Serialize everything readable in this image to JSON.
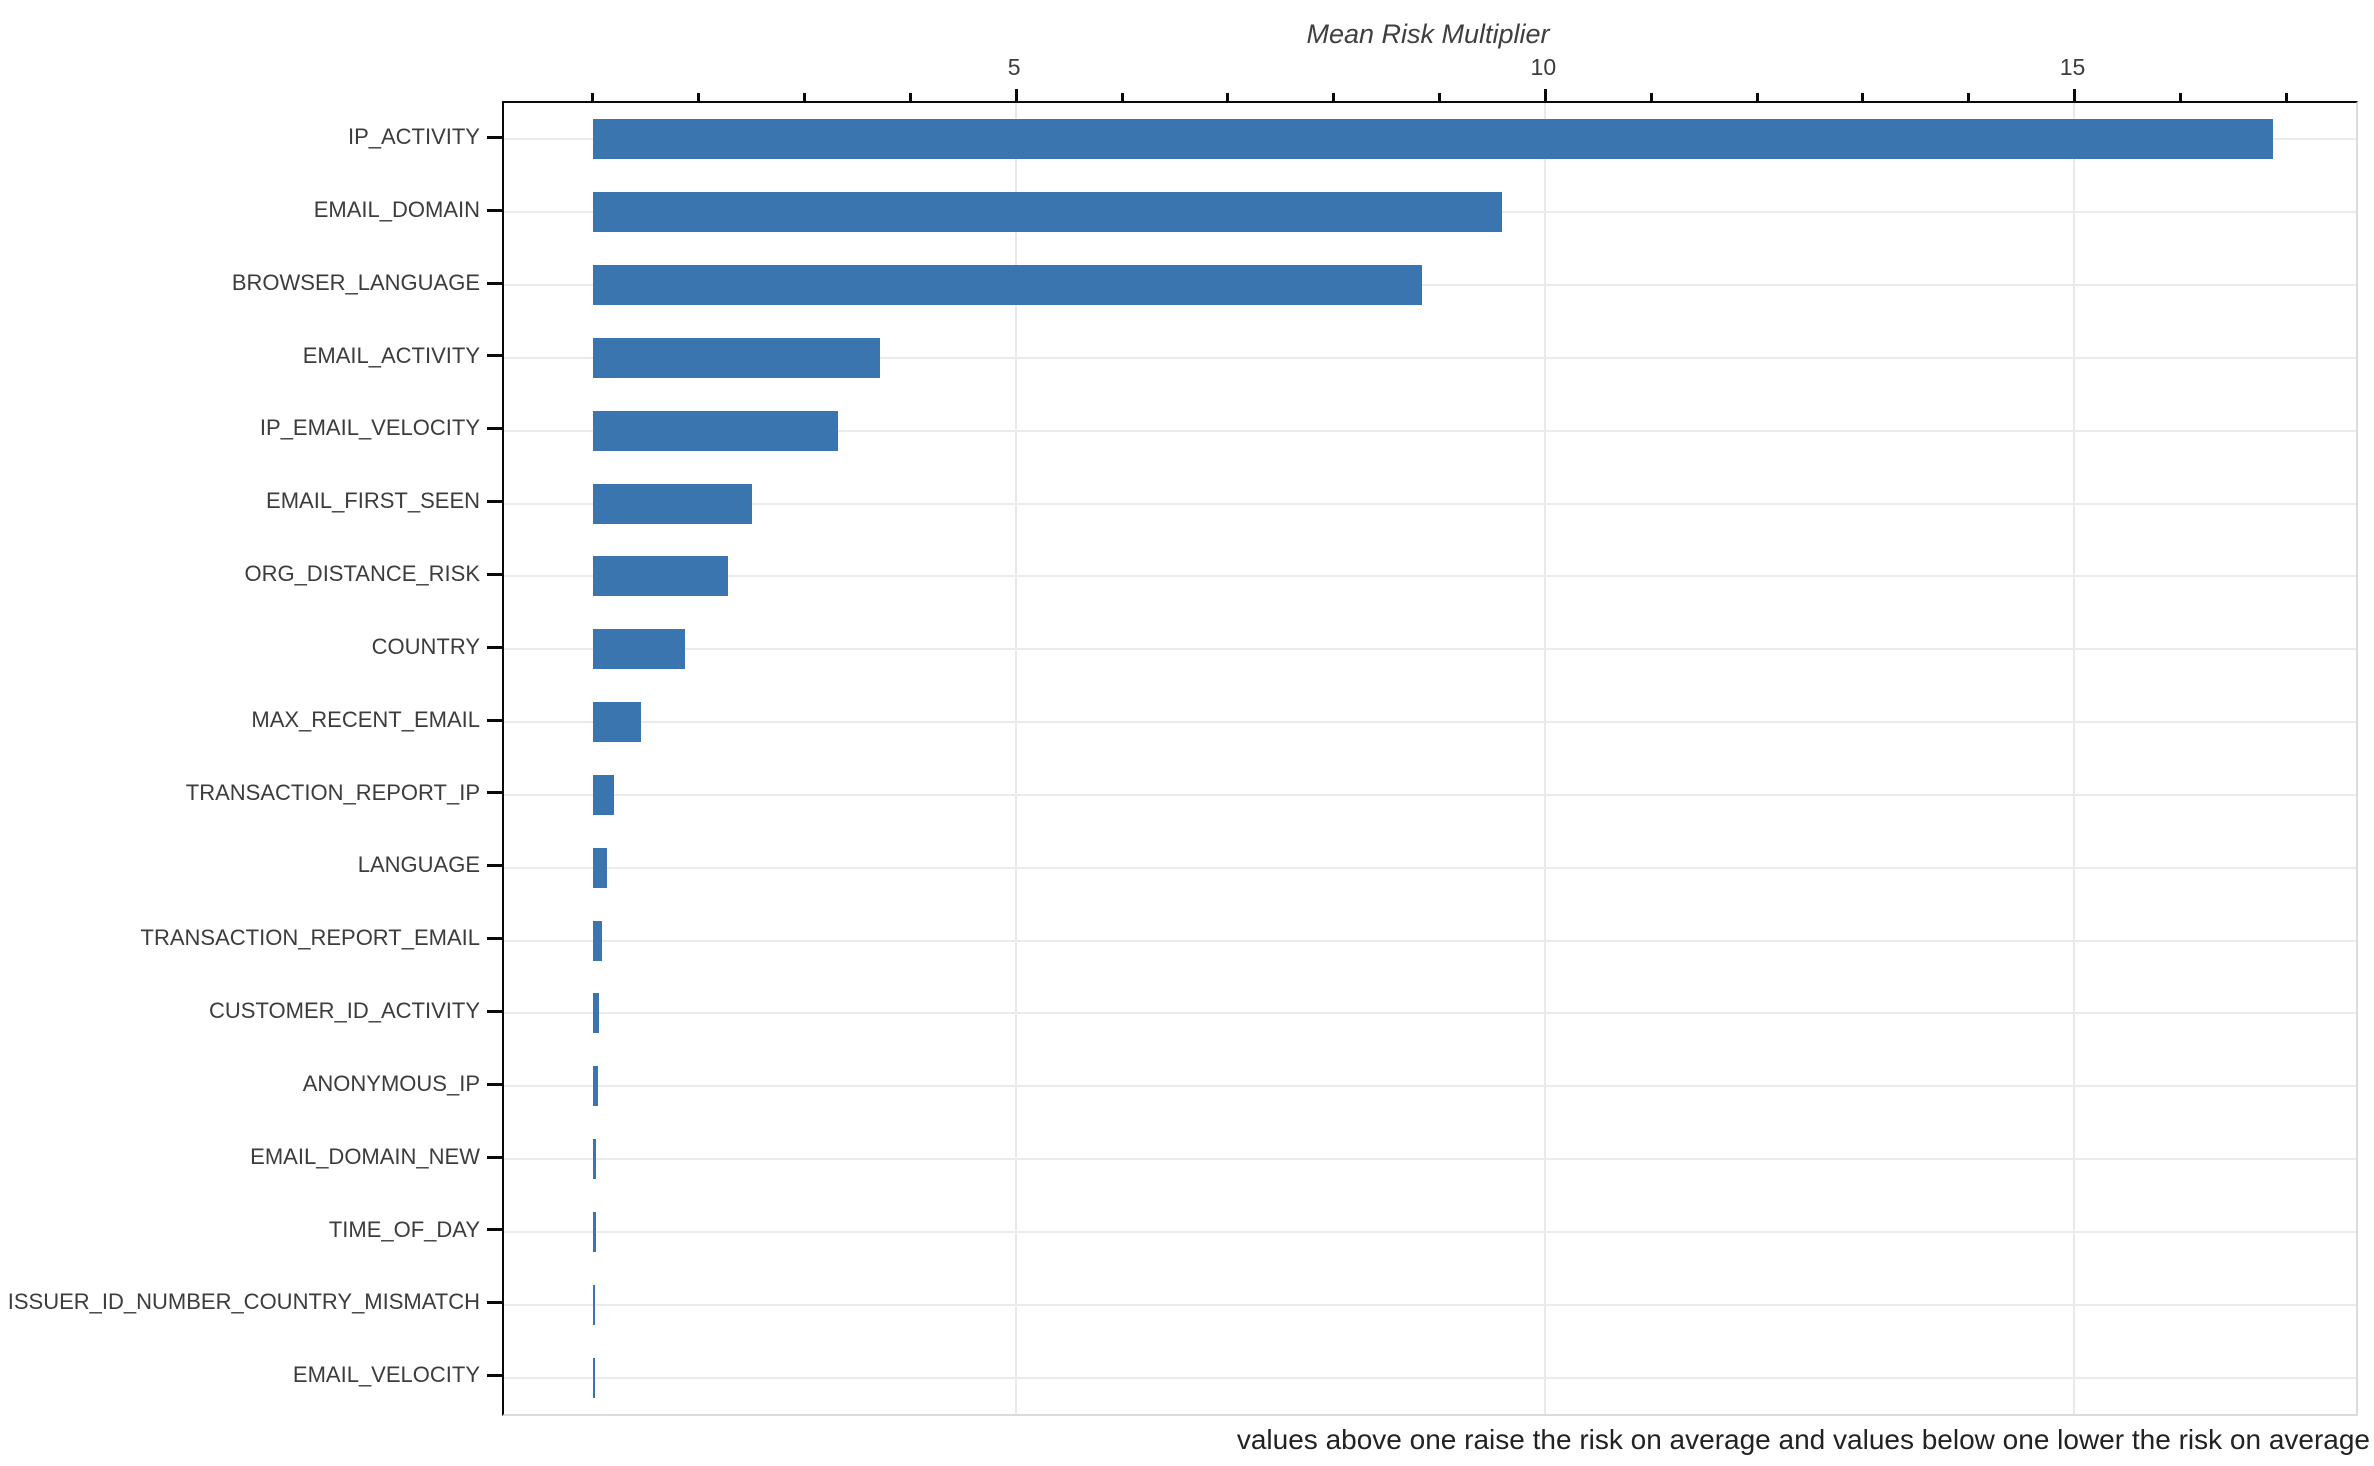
{
  "caption": "values above one raise the risk on average and values below one lower the risk on average",
  "chart_data": {
    "type": "bar",
    "orientation": "horizontal",
    "title": "Mean Risk Multiplier",
    "xlabel": "Mean Risk Multiplier",
    "ylabel": "",
    "annotation": "values above one raise the risk on average and values below one lower the risk on average",
    "categories": [
      "IP_ACTIVITY",
      "EMAIL_DOMAIN",
      "BROWSER_LANGUAGE",
      "EMAIL_ACTIVITY",
      "IP_EMAIL_VELOCITY",
      "EMAIL_FIRST_SEEN",
      "ORG_DISTANCE_RISK",
      "COUNTRY",
      "MAX_RECENT_EMAIL",
      "TRANSACTION_REPORT_IP",
      "LANGUAGE",
      "TRANSACTION_REPORT_EMAIL",
      "CUSTOMER_ID_ACTIVITY",
      "ANONYMOUS_IP",
      "EMAIL_DOMAIN_NEW",
      "TIME_OF_DAY",
      "ISSUER_ID_NUMBER_COUNTRY_MISMATCH",
      "EMAIL_VELOCITY"
    ],
    "values": [
      16.88,
      9.59,
      8.83,
      3.71,
      3.32,
      2.5,
      2.28,
      1.87,
      1.45,
      1.2,
      1.13,
      1.09,
      1.06,
      1.045,
      1.032,
      1.026,
      1.02,
      1.015
    ],
    "bar_base": 1,
    "xlim": [
      0.16,
      17.66
    ],
    "x_major_ticks": [
      5,
      10,
      15
    ],
    "x_major_tick_labels": [
      "5",
      "10",
      "15"
    ],
    "x_minor_ticks": [
      1,
      2,
      3,
      4,
      6,
      7,
      8,
      9,
      11,
      12,
      13,
      14,
      16,
      17
    ],
    "grid": "vertical lines at major x ticks; horizontal line at each category",
    "axis_position": "x axis on top",
    "bar_color": "#3b75af",
    "grid_color": "#e9e9e9",
    "legend": "none"
  }
}
